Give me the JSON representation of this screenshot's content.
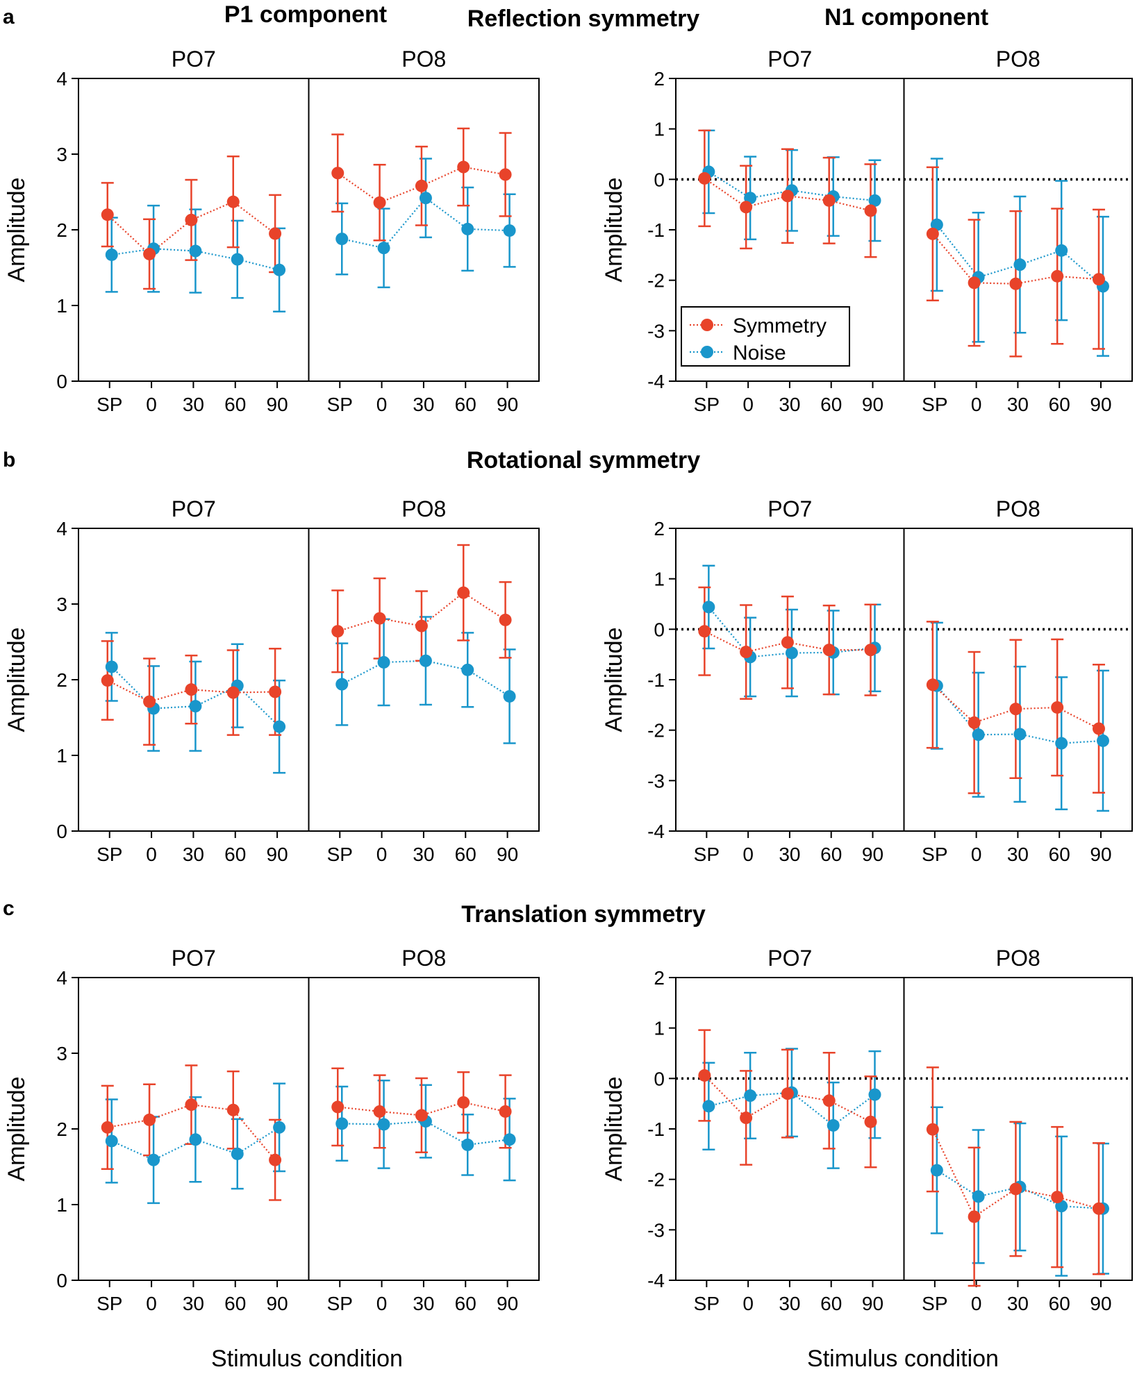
{
  "colors": {
    "symmetry": "#E8432A",
    "noise": "#1996CB",
    "axis": "#000000"
  },
  "labels": {
    "a": "a",
    "b": "b",
    "c": "c",
    "p1_component": "P1 component",
    "n1_component": "N1 component",
    "reflection": "Reflection symmetry",
    "rotational": "Rotational symmetry",
    "translation": "Translation symmetry",
    "po7": "PO7",
    "po8": "PO8",
    "y_axis": "Amplitude",
    "x_axis": "Stimulus condition",
    "legend_symmetry": "Symmetry",
    "legend_noise": "Noise"
  },
  "chart_data": [
    {
      "type": "line",
      "row": "a",
      "component": "P1",
      "ylim": [
        0,
        4
      ],
      "yticks": [
        "0",
        "1",
        "2",
        "3",
        "4"
      ],
      "zero_line": false,
      "electrodes": [
        "PO7",
        "PO8"
      ],
      "categories": [
        "SP",
        "0",
        "30",
        "60",
        "90"
      ],
      "series": [
        {
          "name": "Symmetry",
          "PO7": [
            2.2,
            1.68,
            2.13,
            2.37,
            1.95
          ],
          "PO7_err": [
            0.42,
            0.46,
            0.53,
            0.6,
            0.51
          ],
          "PO8": [
            2.75,
            2.36,
            2.58,
            2.83,
            2.73
          ],
          "PO8_err": [
            0.51,
            0.5,
            0.52,
            0.51,
            0.55
          ]
        },
        {
          "name": "Noise",
          "PO7": [
            1.67,
            1.75,
            1.72,
            1.61,
            1.47
          ],
          "PO7_err": [
            0.49,
            0.57,
            0.55,
            0.51,
            0.55
          ],
          "PO8": [
            1.88,
            1.76,
            2.42,
            2.01,
            1.99
          ],
          "PO8_err": [
            0.47,
            0.52,
            0.52,
            0.55,
            0.48
          ]
        }
      ]
    },
    {
      "type": "line",
      "row": "a",
      "component": "N1",
      "ylim": [
        -4,
        2
      ],
      "yticks": [
        "-4",
        "-3",
        "-2",
        "-1",
        "0",
        "1",
        "2"
      ],
      "zero_line": true,
      "legend": "bottom-left",
      "electrodes": [
        "PO7",
        "PO8"
      ],
      "categories": [
        "SP",
        "0",
        "30",
        "60",
        "90"
      ],
      "series": [
        {
          "name": "Symmetry",
          "PO7": [
            0.02,
            -0.55,
            -0.33,
            -0.42,
            -0.62
          ],
          "PO7_err": [
            0.95,
            0.82,
            0.93,
            0.85,
            0.92
          ],
          "PO8": [
            -1.08,
            -2.05,
            -2.07,
            -1.92,
            -1.98
          ],
          "PO8_err": [
            1.32,
            1.25,
            1.44,
            1.34,
            1.38
          ]
        },
        {
          "name": "Noise",
          "PO7": [
            0.15,
            -0.37,
            -0.22,
            -0.34,
            -0.42
          ],
          "PO7_err": [
            0.82,
            0.82,
            0.8,
            0.78,
            0.8
          ],
          "PO8": [
            -0.9,
            -1.94,
            -1.69,
            -1.41,
            -2.12
          ],
          "PO8_err": [
            1.31,
            1.28,
            1.35,
            1.38,
            1.38
          ]
        }
      ]
    },
    {
      "type": "line",
      "row": "b",
      "component": "P1",
      "ylim": [
        0,
        4
      ],
      "yticks": [
        "0",
        "1",
        "2",
        "3",
        "4"
      ],
      "zero_line": false,
      "electrodes": [
        "PO7",
        "PO8"
      ],
      "categories": [
        "SP",
        "0",
        "30",
        "60",
        "90"
      ],
      "series": [
        {
          "name": "Symmetry",
          "PO7": [
            1.99,
            1.71,
            1.87,
            1.83,
            1.84
          ],
          "PO7_err": [
            0.52,
            0.57,
            0.45,
            0.56,
            0.57
          ],
          "PO8": [
            2.64,
            2.81,
            2.71,
            3.15,
            2.79
          ],
          "PO8_err": [
            0.54,
            0.53,
            0.46,
            0.63,
            0.5
          ]
        },
        {
          "name": "Noise",
          "PO7": [
            2.17,
            1.62,
            1.65,
            1.92,
            1.38
          ],
          "PO7_err": [
            0.45,
            0.56,
            0.59,
            0.55,
            0.61
          ],
          "PO8": [
            1.94,
            2.23,
            2.25,
            2.13,
            1.78
          ],
          "PO8_err": [
            0.54,
            0.57,
            0.58,
            0.49,
            0.62
          ]
        }
      ]
    },
    {
      "type": "line",
      "row": "b",
      "component": "N1",
      "ylim": [
        -4,
        2
      ],
      "yticks": [
        "-4",
        "-3",
        "-2",
        "-1",
        "0",
        "1",
        "2"
      ],
      "zero_line": true,
      "electrodes": [
        "PO7",
        "PO8"
      ],
      "categories": [
        "SP",
        "0",
        "30",
        "60",
        "90"
      ],
      "series": [
        {
          "name": "Symmetry",
          "PO7": [
            -0.04,
            -0.45,
            -0.26,
            -0.41,
            -0.41
          ],
          "PO7_err": [
            0.87,
            0.93,
            0.91,
            0.88,
            0.9
          ],
          "PO8": [
            -1.1,
            -1.85,
            -1.58,
            -1.55,
            -1.97
          ],
          "PO8_err": [
            1.25,
            1.4,
            1.37,
            1.35,
            1.27
          ]
        },
        {
          "name": "Noise",
          "PO7": [
            0.44,
            -0.55,
            -0.47,
            -0.46,
            -0.37
          ],
          "PO7_err": [
            0.82,
            0.78,
            0.86,
            0.83,
            0.86
          ],
          "PO8": [
            -1.12,
            -2.09,
            -2.08,
            -2.26,
            -2.21
          ],
          "PO8_err": [
            1.25,
            1.23,
            1.34,
            1.31,
            1.39
          ]
        }
      ]
    },
    {
      "type": "line",
      "row": "c",
      "component": "P1",
      "ylim": [
        0,
        4
      ],
      "yticks": [
        "0",
        "1",
        "2",
        "3",
        "4"
      ],
      "zero_line": false,
      "electrodes": [
        "PO7",
        "PO8"
      ],
      "categories": [
        "SP",
        "0",
        "30",
        "60",
        "90"
      ],
      "series": [
        {
          "name": "Symmetry",
          "PO7": [
            2.02,
            2.12,
            2.32,
            2.25,
            1.59
          ],
          "PO7_err": [
            0.55,
            0.47,
            0.52,
            0.51,
            0.53
          ],
          "PO8": [
            2.29,
            2.23,
            2.18,
            2.35,
            2.23
          ],
          "PO8_err": [
            0.51,
            0.48,
            0.49,
            0.4,
            0.48
          ]
        },
        {
          "name": "Noise",
          "PO7": [
            1.84,
            1.59,
            1.86,
            1.67,
            2.02
          ],
          "PO7_err": [
            0.55,
            0.57,
            0.56,
            0.46,
            0.58
          ],
          "PO8": [
            2.07,
            2.06,
            2.1,
            1.79,
            1.86
          ],
          "PO8_err": [
            0.49,
            0.58,
            0.48,
            0.4,
            0.54
          ]
        }
      ]
    },
    {
      "type": "line",
      "row": "c",
      "component": "N1",
      "ylim": [
        -4,
        2
      ],
      "yticks": [
        "-4",
        "-3",
        "-2",
        "-1",
        "0",
        "1",
        "2"
      ],
      "zero_line": true,
      "electrodes": [
        "PO7",
        "PO8"
      ],
      "categories": [
        "SP",
        "0",
        "30",
        "60",
        "90"
      ],
      "series": [
        {
          "name": "Symmetry",
          "PO7": [
            0.06,
            -0.78,
            -0.3,
            -0.44,
            -0.86
          ],
          "PO7_err": [
            0.9,
            0.93,
            0.87,
            0.95,
            0.9
          ],
          "PO8": [
            -1.01,
            -2.74,
            -2.19,
            -2.35,
            -2.58
          ],
          "PO8_err": [
            1.23,
            1.37,
            1.33,
            1.39,
            1.3
          ]
        },
        {
          "name": "Noise",
          "PO7": [
            -0.55,
            -0.34,
            -0.28,
            -0.93,
            -0.32
          ],
          "PO7_err": [
            0.86,
            0.85,
            0.87,
            0.85,
            0.86
          ],
          "PO8": [
            -1.82,
            -2.34,
            -2.15,
            -2.53,
            -2.58
          ],
          "PO8_err": [
            1.25,
            1.32,
            1.26,
            1.38,
            1.29
          ]
        }
      ]
    }
  ]
}
